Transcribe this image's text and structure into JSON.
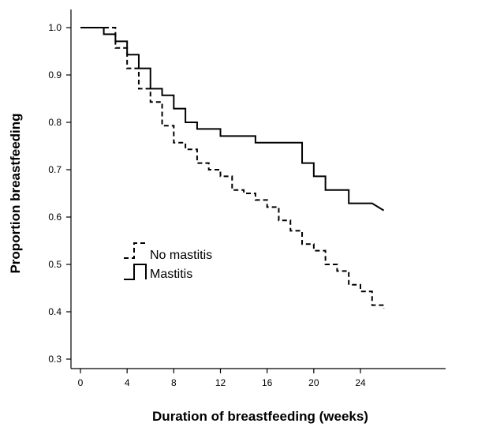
{
  "chart_data": {
    "type": "line",
    "step": true,
    "xlabel": "Duration of breastfeeding (weeks)",
    "ylabel": "Proportion breastfeeding",
    "xlim": [
      0,
      26
    ],
    "ylim": [
      0.3,
      1.0
    ],
    "xticks": [
      0,
      4,
      8,
      12,
      16,
      20,
      24
    ],
    "yticks": [
      0.3,
      0.4,
      0.5,
      0.6,
      0.7,
      0.8,
      0.9,
      1.0
    ],
    "grid": false,
    "legend": "center-left",
    "series": [
      {
        "name": "No mastitis",
        "style": "dashed",
        "points": [
          [
            0,
            1.0
          ],
          [
            3,
            0.957
          ],
          [
            4,
            0.914
          ],
          [
            5,
            0.871
          ],
          [
            6,
            0.843
          ],
          [
            7,
            0.793
          ],
          [
            8,
            0.757
          ],
          [
            9,
            0.743
          ],
          [
            10,
            0.729
          ],
          [
            10,
            0.714
          ],
          [
            11,
            0.7
          ],
          [
            12,
            0.686
          ],
          [
            13,
            0.657
          ],
          [
            14,
            0.65
          ],
          [
            15,
            0.636
          ],
          [
            16,
            0.621
          ],
          [
            17,
            0.607
          ],
          [
            17,
            0.593
          ],
          [
            18,
            0.571
          ],
          [
            19,
            0.543
          ],
          [
            20,
            0.529
          ],
          [
            21,
            0.514
          ],
          [
            21,
            0.5
          ],
          [
            22,
            0.486
          ],
          [
            23,
            0.457
          ],
          [
            24,
            0.443
          ],
          [
            25,
            0.429
          ],
          [
            25,
            0.414
          ],
          [
            26,
            0.407
          ]
        ]
      },
      {
        "name": "Mastitis",
        "style": "solid",
        "points": [
          [
            0,
            1.0
          ],
          [
            2,
            0.986
          ],
          [
            3,
            0.971
          ],
          [
            4,
            0.943
          ],
          [
            5,
            0.914
          ],
          [
            6,
            0.871
          ],
          [
            7,
            0.857
          ],
          [
            8,
            0.829
          ],
          [
            9,
            0.8
          ],
          [
            10,
            0.786
          ],
          [
            12,
            0.771
          ],
          [
            15,
            0.757
          ],
          [
            19,
            0.714
          ],
          [
            20,
            0.686
          ],
          [
            21,
            0.657
          ],
          [
            23,
            0.629
          ],
          [
            25,
            0.629
          ],
          [
            26,
            0.614
          ]
        ]
      }
    ]
  }
}
